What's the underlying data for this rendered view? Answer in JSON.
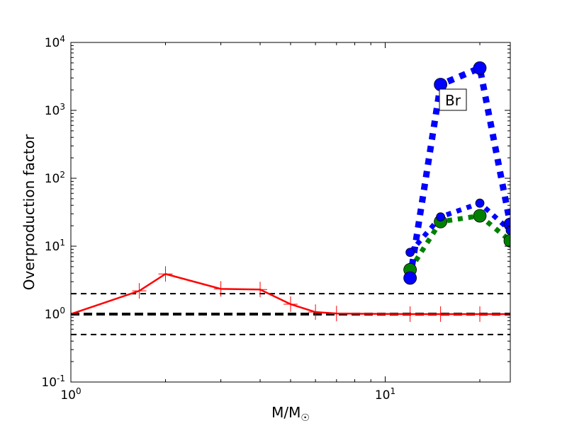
{
  "chart_data": {
    "type": "line",
    "title": "",
    "xlabel": "M/M",
    "xlabel_subscript": "☉",
    "ylabel": "Overproduction factor",
    "xscale": "log",
    "yscale": "log",
    "xlim": [
      1,
      25
    ],
    "ylim": [
      0.1,
      10000
    ],
    "grid": false,
    "x_ticks": [
      {
        "value": 1,
        "base": "10",
        "exp": "0"
      },
      {
        "value": 10,
        "base": "10",
        "exp": "1"
      }
    ],
    "y_ticks": [
      {
        "value": 0.1,
        "base": "10",
        "exp": "-1"
      },
      {
        "value": 1,
        "base": "10",
        "exp": "0"
      },
      {
        "value": 10,
        "base": "10",
        "exp": "1"
      },
      {
        "value": 100,
        "base": "10",
        "exp": "2"
      },
      {
        "value": 1000,
        "base": "10",
        "exp": "3"
      },
      {
        "value": 10000,
        "base": "10",
        "exp": "4"
      }
    ],
    "hlines": [
      {
        "y": 2,
        "style": "dashed",
        "color": "#000000",
        "weight": "thin"
      },
      {
        "y": 1,
        "style": "dashed",
        "color": "#000000",
        "weight": "thick"
      },
      {
        "y": 0.5,
        "style": "dashed",
        "color": "#000000",
        "weight": "thin"
      }
    ],
    "annotation": {
      "text": "Br",
      "x": 16.5,
      "y": 1400
    },
    "series": [
      {
        "color": "#ff0000",
        "style": "solid",
        "marker": "errorbar",
        "yerr_factor": 1.3,
        "x": [
          1,
          1.65,
          2,
          3,
          4,
          5,
          6,
          7,
          12,
          15,
          20,
          25
        ],
        "y": [
          1.0,
          2.2,
          3.9,
          2.35,
          2.3,
          1.4,
          1.07,
          1.02,
          1.0,
          1.0,
          1.0,
          1.0
        ]
      },
      {
        "color": "#008000",
        "style": "dotted",
        "marker": "circle-medium",
        "x": [
          12,
          15,
          20,
          25
        ],
        "y": [
          4.5,
          23,
          28,
          12
        ]
      },
      {
        "color": "#0000ff",
        "style": "dotted-thick",
        "marker": "circle-large",
        "x": [
          12,
          15,
          20,
          25
        ],
        "y": [
          3.4,
          2400,
          4200,
          21
        ]
      },
      {
        "color": "#0000ff",
        "style": "dotted",
        "marker": "circle-small",
        "x": [
          12,
          15,
          20,
          25
        ],
        "y": [
          8.1,
          27,
          43,
          17
        ]
      }
    ]
  }
}
